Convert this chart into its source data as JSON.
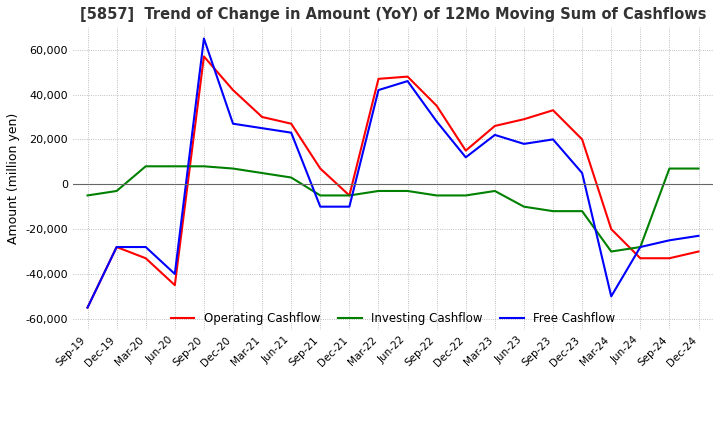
{
  "title": "[5857]  Trend of Change in Amount (YoY) of 12Mo Moving Sum of Cashflows",
  "ylabel": "Amount (million yen)",
  "ylim": [
    -65000,
    70000
  ],
  "yticks": [
    -60000,
    -40000,
    -20000,
    0,
    20000,
    40000,
    60000
  ],
  "x_labels": [
    "Sep-19",
    "Dec-19",
    "Mar-20",
    "Jun-20",
    "Sep-20",
    "Dec-20",
    "Mar-21",
    "Jun-21",
    "Sep-21",
    "Dec-21",
    "Mar-22",
    "Jun-22",
    "Sep-22",
    "Dec-22",
    "Mar-23",
    "Jun-23",
    "Sep-23",
    "Dec-23",
    "Mar-24",
    "Jun-24",
    "Sep-24",
    "Dec-24"
  ],
  "operating": [
    -55000,
    -28000,
    -33000,
    -45000,
    57000,
    42000,
    30000,
    27000,
    7000,
    -5000,
    47000,
    48000,
    35000,
    15000,
    26000,
    29000,
    33000,
    20000,
    -20000,
    -33000,
    -33000,
    -30000
  ],
  "investing": [
    -5000,
    -3000,
    8000,
    8000,
    8000,
    7000,
    5000,
    3000,
    -5000,
    -5000,
    -3000,
    -3000,
    -5000,
    -5000,
    -3000,
    -10000,
    -12000,
    -12000,
    -30000,
    -28000,
    7000,
    7000
  ],
  "free": [
    -55000,
    -28000,
    -28000,
    -40000,
    65000,
    27000,
    25000,
    23000,
    -10000,
    -10000,
    42000,
    46000,
    28000,
    12000,
    22000,
    18000,
    20000,
    5000,
    -50000,
    -28000,
    -25000,
    -23000
  ],
  "operating_color": "#ff0000",
  "investing_color": "#008000",
  "free_color": "#0000ff",
  "background_color": "#ffffff",
  "grid_color": "#aaaaaa"
}
